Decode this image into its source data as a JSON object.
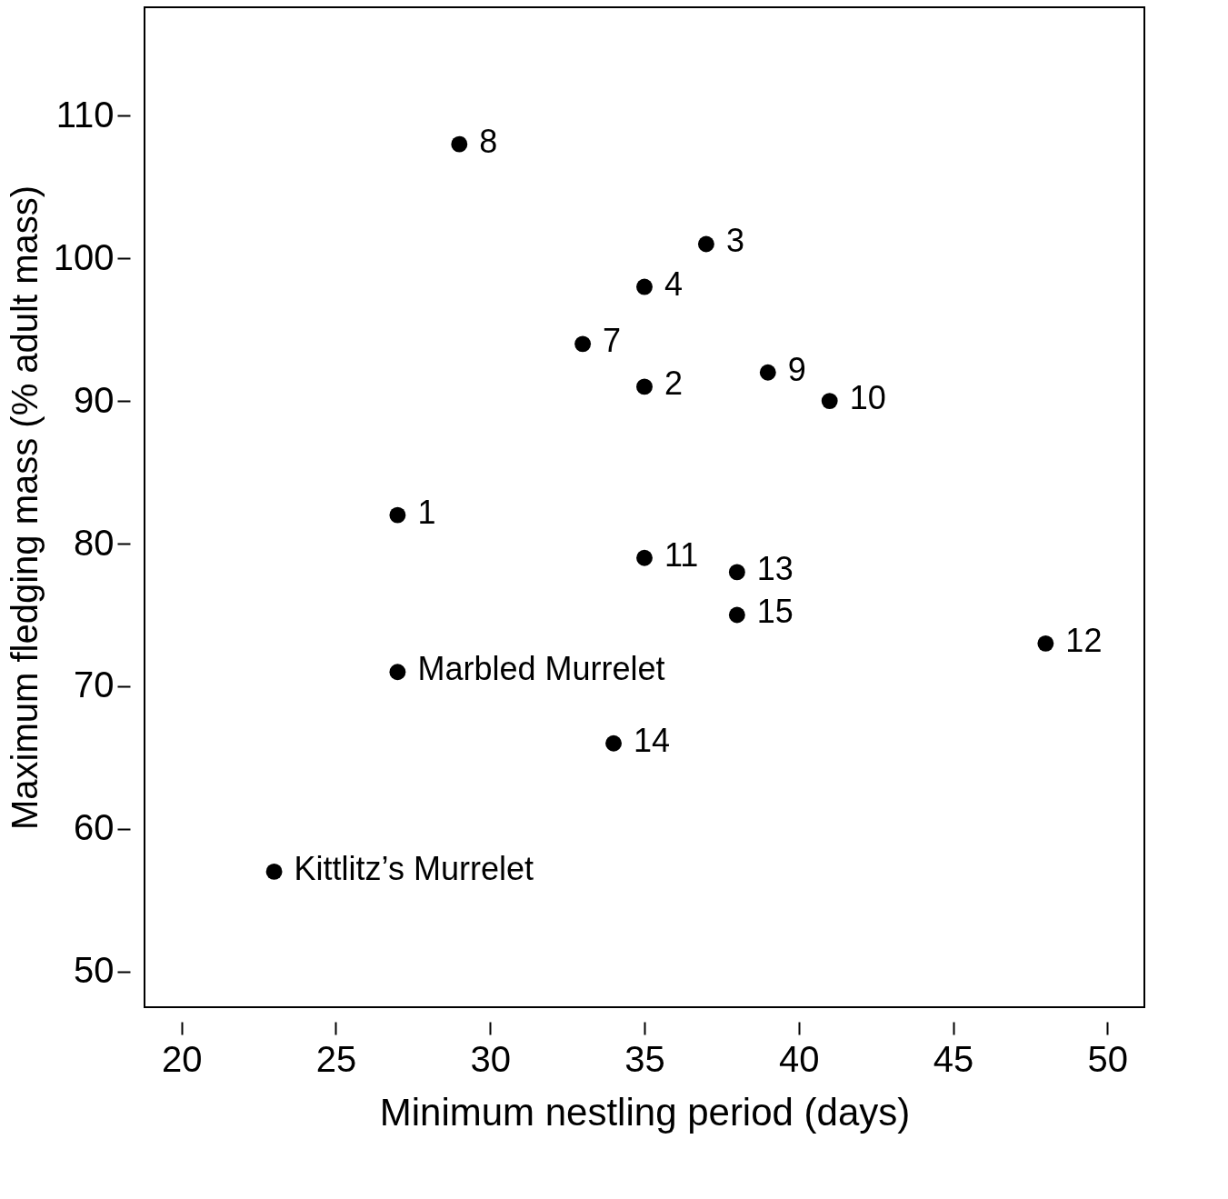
{
  "chart_data": {
    "type": "scatter",
    "xlabel": "Minimum nestling period (days)",
    "ylabel": "Maximum fledging mass (% adult mass)",
    "x": [
      29,
      37,
      35,
      33,
      35,
      39,
      41,
      27,
      35,
      38,
      38,
      48,
      27,
      34,
      23
    ],
    "series": [
      {
        "color": "#000000",
        "values": [
          108,
          101,
          98,
          94,
          91,
          92,
          90,
          82,
          79,
          78,
          75,
          73,
          71,
          66,
          57
        ]
      }
    ],
    "xlim": [
      18.8,
      51.2
    ],
    "xticks": [
      20,
      25,
      30,
      35,
      40,
      45,
      50
    ],
    "ylim": [
      47.5,
      117.6
    ],
    "yticks": [
      50,
      60,
      70,
      80,
      90,
      100,
      110
    ],
    "grid": false,
    "marker": "circle",
    "annotations": [
      {
        "text": "8",
        "x": 29,
        "y": 108
      },
      {
        "text": "3",
        "x": 37,
        "y": 101
      },
      {
        "text": "4",
        "x": 35,
        "y": 98
      },
      {
        "text": "7",
        "x": 33,
        "y": 94
      },
      {
        "text": "2",
        "x": 35,
        "y": 91
      },
      {
        "text": "9",
        "x": 39,
        "y": 92
      },
      {
        "text": "10",
        "x": 41,
        "y": 90
      },
      {
        "text": "1",
        "x": 27,
        "y": 82
      },
      {
        "text": "11",
        "x": 35,
        "y": 79
      },
      {
        "text": "13",
        "x": 38,
        "y": 78
      },
      {
        "text": "15",
        "x": 38,
        "y": 75
      },
      {
        "text": "12",
        "x": 48,
        "y": 73
      },
      {
        "text": "Marbled Murrelet",
        "x": 27,
        "y": 71
      },
      {
        "text": "14",
        "x": 34,
        "y": 66
      },
      {
        "text": "Kittlitz’s Murrelet",
        "x": 23,
        "y": 57
      }
    ]
  }
}
